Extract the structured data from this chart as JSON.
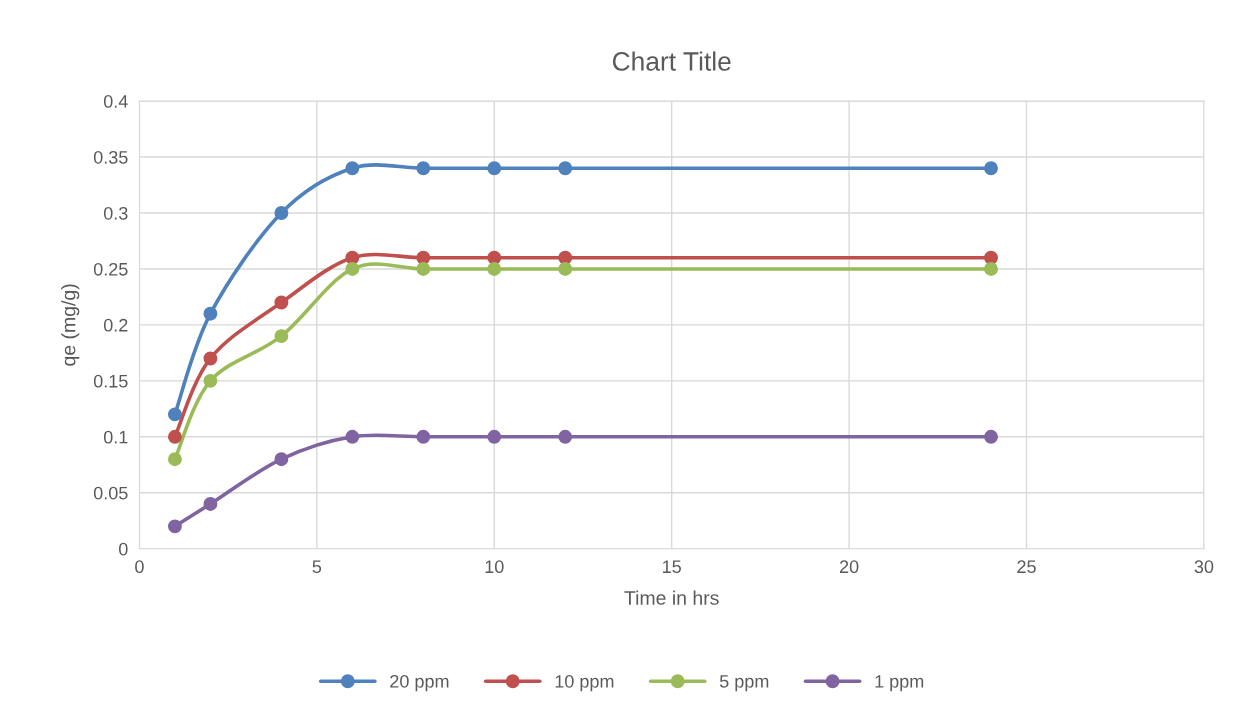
{
  "chart_data": {
    "type": "line",
    "title": "Chart Title",
    "xlabel": "Time in hrs",
    "ylabel": "qe (mg/g)",
    "x": [
      1,
      2,
      4,
      6,
      8,
      10,
      12,
      24
    ],
    "series": [
      {
        "name": "20 ppm",
        "color": "#4f81bd",
        "values": [
          0.12,
          0.21,
          0.3,
          0.34,
          0.34,
          0.34,
          0.34,
          0.34
        ]
      },
      {
        "name": "10 ppm",
        "color": "#c0504d",
        "values": [
          0.1,
          0.17,
          0.22,
          0.26,
          0.26,
          0.26,
          0.26,
          0.26
        ]
      },
      {
        "name": "5 ppm",
        "color": "#9bbb59",
        "values": [
          0.08,
          0.15,
          0.19,
          0.25,
          0.25,
          0.25,
          0.25,
          0.25
        ]
      },
      {
        "name": "1 ppm",
        "color": "#8064a2",
        "values": [
          0.02,
          0.04,
          0.08,
          0.1,
          0.1,
          0.1,
          0.1,
          0.1
        ]
      }
    ],
    "xlim": [
      0,
      30
    ],
    "xticks": [
      0,
      5,
      10,
      15,
      20,
      25,
      30
    ],
    "ylim": [
      0,
      0.4
    ],
    "yticks": [
      0,
      0.05,
      0.1,
      0.15,
      0.2,
      0.25,
      0.3,
      0.35,
      0.4
    ],
    "grid": true,
    "legend": "bottom",
    "marker": "circle",
    "line_style": "solid"
  }
}
